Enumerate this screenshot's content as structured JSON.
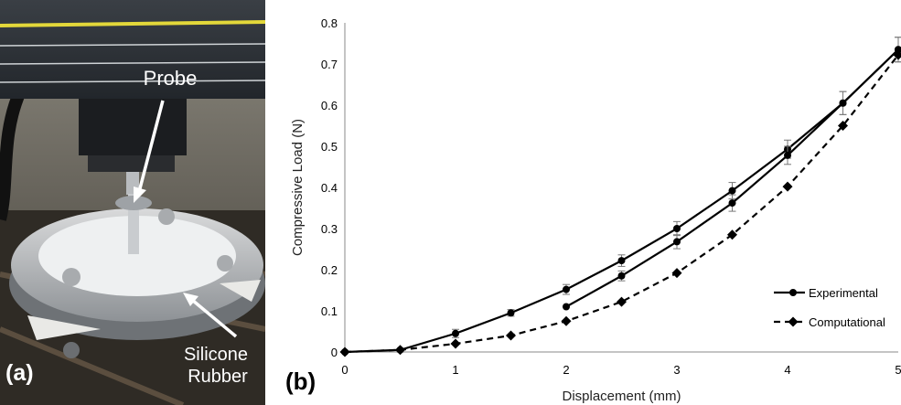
{
  "photo": {
    "panel_label": "(a)",
    "probe_label": "Probe",
    "rubber_label_line1": "Silicone",
    "rubber_label_line2": "Rubber"
  },
  "chart_panel_label": "(b)",
  "chart_data": {
    "type": "line",
    "title": "",
    "xlabel": "Displacement (mm)",
    "ylabel": "Compressive Load (N)",
    "xlim": [
      0,
      5
    ],
    "ylim": [
      0,
      0.8
    ],
    "x_ticks": [
      "0",
      "1",
      "2",
      "3",
      "4",
      "5"
    ],
    "y_ticks": [
      "0",
      "0.1",
      "0.2",
      "0.3",
      "0.4",
      "0.5",
      "0.6",
      "0.7",
      "0.8"
    ],
    "grid": false,
    "legend_position": "bottom-right",
    "series": [
      {
        "name": "Experimental",
        "marker": "circle",
        "line_style": "solid",
        "note": "loading",
        "x": [
          0,
          0.5,
          1,
          1.5,
          2,
          2.5,
          3,
          3.5,
          4,
          4.5,
          5
        ],
        "y": [
          0,
          0.005,
          0.045,
          0.095,
          0.152,
          0.222,
          0.3,
          0.392,
          0.493,
          0.605,
          0.735
        ],
        "error": [
          0,
          0,
          0.01,
          0.008,
          0.012,
          0.014,
          0.017,
          0.02,
          0.022,
          0.028,
          0.03
        ]
      },
      {
        "name": "",
        "marker": "circle",
        "line_style": "solid",
        "x": [
          2,
          2.5,
          3,
          3.5,
          4,
          4.5,
          5
        ],
        "y": [
          0.11,
          0.185,
          0.268,
          0.362,
          0.478,
          0.605,
          0.735
        ],
        "error": [
          0,
          0.012,
          0.017,
          0.02,
          0.022,
          0.028,
          0.03
        ]
      },
      {
        "name": "Computational",
        "marker": "diamond",
        "line_style": "dashed",
        "x": [
          0,
          0.5,
          1,
          1.5,
          2,
          2.5,
          3,
          3.5,
          4,
          4.5,
          5
        ],
        "y": [
          0,
          0.005,
          0.02,
          0.04,
          0.075,
          0.122,
          0.192,
          0.285,
          0.402,
          0.55,
          0.722
        ],
        "error": []
      }
    ]
  }
}
